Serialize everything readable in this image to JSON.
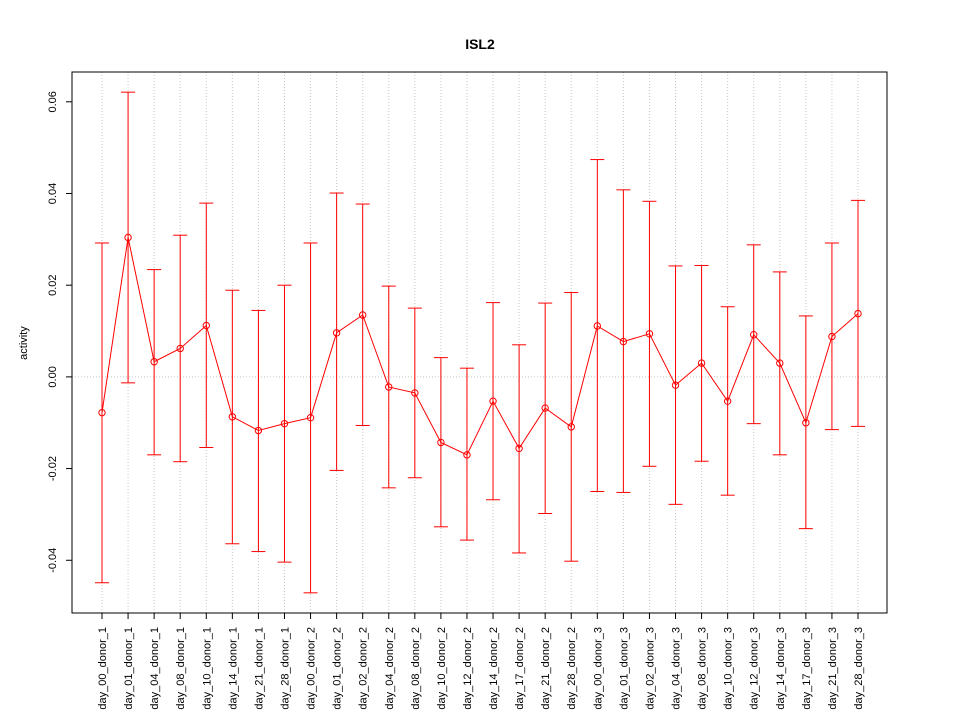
{
  "chart_data": {
    "type": "line",
    "title": "ISL2",
    "xlabel": "",
    "ylabel": "activity",
    "ylim": [
      -0.0515,
      0.0665
    ],
    "yticks": [
      "-0.04",
      "-0.02",
      "0.00",
      "0.02",
      "0.04",
      "0.06"
    ],
    "ytick_values": [
      -0.04,
      -0.02,
      0.0,
      0.02,
      0.04,
      0.06
    ],
    "grid": true,
    "reference_line": 0.0,
    "color": "#ff0000",
    "categories": [
      "day_00_donor_1",
      "day_01_donor_1",
      "day_04_donor_1",
      "day_08_donor_1",
      "day_10_donor_1",
      "day_14_donor_1",
      "day_21_donor_1",
      "day_28_donor_1",
      "day_00_donor_2",
      "day_01_donor_2",
      "day_02_donor_2",
      "day_04_donor_2",
      "day_08_donor_2",
      "day_10_donor_2",
      "day_12_donor_2",
      "day_14_donor_2",
      "day_17_donor_2",
      "day_21_donor_2",
      "day_28_donor_2",
      "day_00_donor_3",
      "day_01_donor_3",
      "day_02_donor_3",
      "day_04_donor_3",
      "day_08_donor_3",
      "day_10_donor_3",
      "day_12_donor_3",
      "day_14_donor_3",
      "day_17_donor_3",
      "day_21_donor_3",
      "day_28_donor_3"
    ],
    "values": [
      -0.0078,
      0.0304,
      0.0033,
      0.0062,
      0.0112,
      -0.0087,
      -0.0117,
      -0.0102,
      -0.0089,
      0.0096,
      0.0135,
      -0.0022,
      -0.0035,
      -0.0143,
      -0.017,
      -0.0053,
      -0.0156,
      -0.0068,
      -0.0109,
      0.0111,
      0.0077,
      0.0094,
      -0.0018,
      0.003,
      -0.0053,
      0.0092,
      0.003,
      -0.01,
      0.0088,
      0.0138
    ],
    "upper": [
      0.0292,
      0.0621,
      0.0234,
      0.0309,
      0.0379,
      0.0189,
      0.0145,
      0.02,
      0.0292,
      0.0401,
      0.0377,
      0.0198,
      0.015,
      0.0042,
      0.0019,
      0.0162,
      0.007,
      0.0161,
      0.0184,
      0.0474,
      0.0408,
      0.0383,
      0.0242,
      0.0243,
      0.0153,
      0.0288,
      0.0229,
      0.0133,
      0.0292,
      0.0385
    ],
    "lower": [
      -0.0449,
      -0.0013,
      -0.017,
      -0.0185,
      -0.0154,
      -0.0364,
      -0.0381,
      -0.0404,
      -0.0471,
      -0.0204,
      -0.0106,
      -0.0242,
      -0.022,
      -0.0327,
      -0.0356,
      -0.0268,
      -0.0384,
      -0.0298,
      -0.0402,
      -0.025,
      -0.0252,
      -0.0195,
      -0.0278,
      -0.0184,
      -0.0258,
      -0.0102,
      -0.017,
      -0.0331,
      -0.0115,
      -0.0108
    ]
  }
}
